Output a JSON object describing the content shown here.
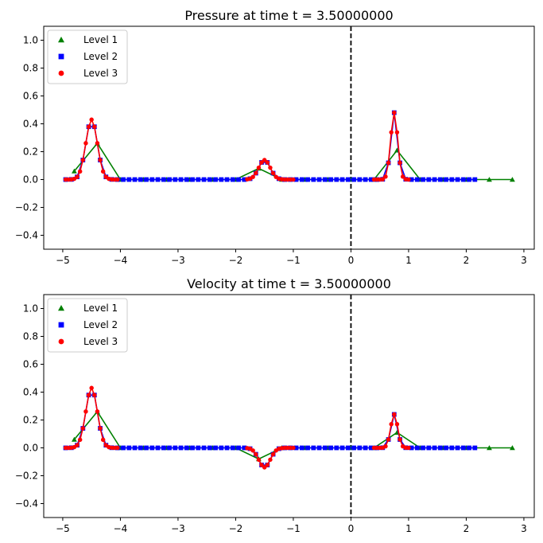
{
  "chart_data": [
    {
      "type": "line",
      "title": "Pressure at time t =     3.50000000",
      "xlabel": "",
      "ylabel": "",
      "xlim": [
        -5.33,
        3.18
      ],
      "ylim": [
        -0.5,
        1.1
      ],
      "xticks": [
        -5,
        -4,
        -3,
        -2,
        -1,
        0,
        1,
        2,
        3
      ],
      "xtick_labels": [
        "−5",
        "−4",
        "−3",
        "−2",
        "−1",
        "0",
        "1",
        "2",
        "3"
      ],
      "yticks": [
        -0.4,
        -0.2,
        0.0,
        0.2,
        0.4,
        0.6,
        0.8,
        1.0
      ],
      "ytick_labels": [
        "−0.4",
        "−0.2",
        "0.0",
        "0.2",
        "0.4",
        "0.6",
        "0.8",
        "1.0"
      ],
      "vline_x": 0,
      "legend": {
        "placement": "top-left",
        "entries": [
          "Level 1",
          "Level 2",
          "Level 3"
        ]
      },
      "series": [
        {
          "name": "Level 1",
          "color": "#008000",
          "marker": "triangle",
          "x_start": -4.8,
          "x_step": 0.4,
          "segments": [
            [
              0.06,
              0.26,
              0,
              0,
              0,
              0,
              0,
              0,
              0.08,
              0,
              0,
              0,
              0,
              0,
              0.21,
              0,
              0,
              0,
              0,
              0
            ]
          ]
        },
        {
          "name": "Level 2",
          "color": "#0000ff",
          "marker": "square",
          "x_start": -4.95,
          "x_step": 0.1,
          "segments": [
            [
              0,
              0.001,
              0.019,
              0.14,
              0.379,
              0.379,
              0.14,
              0.019,
              0.001,
              0,
              0,
              0,
              0,
              0,
              0,
              0,
              0,
              0,
              0,
              0,
              0,
              0,
              0,
              0,
              0,
              0,
              0,
              0,
              0,
              0,
              0,
              0,
              0.006,
              0.046,
              0.123,
              0.123,
              0.046,
              0.006,
              0,
              0,
              0,
              0,
              0,
              0,
              0,
              0,
              0,
              0,
              0,
              0,
              0,
              0,
              0,
              0,
              0,
              0.002,
              0.12,
              0.48,
              0.12,
              0.002,
              0,
              0,
              0,
              0,
              0,
              0,
              0,
              0,
              0,
              0,
              0,
              0
            ]
          ]
        },
        {
          "name": "Level 3",
          "color": "#ff0000",
          "marker": "circle",
          "x_step": 0.05,
          "segment_starts": [
            -4.95,
            -1.8,
            0.4
          ],
          "segments": [
            [
              0,
              0,
              0.001,
              0.005,
              0.019,
              0.058,
              0.14,
              0.261,
              0.379,
              0.43,
              0.379,
              0.261,
              0.14,
              0.058,
              0.019,
              0.005,
              0.001,
              0,
              0
            ],
            [
              0.002,
              0.006,
              0.019,
              0.046,
              0.085,
              0.123,
              0.14,
              0.123,
              0.085,
              0.046,
              0.019,
              0.006,
              0.002,
              0,
              0,
              0,
              0
            ],
            [
              0,
              0,
              0,
              0.002,
              0.021,
              0.12,
              0.339,
              0.48,
              0.339,
              0.12,
              0.021,
              0.002,
              0
            ]
          ]
        }
      ]
    },
    {
      "type": "line",
      "title": "Velocity at time t =     3.50000000",
      "xlabel": "",
      "ylabel": "",
      "xlim": [
        -5.33,
        3.18
      ],
      "ylim": [
        -0.5,
        1.1
      ],
      "xticks": [
        -5,
        -4,
        -3,
        -2,
        -1,
        0,
        1,
        2,
        3
      ],
      "xtick_labels": [
        "−5",
        "−4",
        "−3",
        "−2",
        "−1",
        "0",
        "1",
        "2",
        "3"
      ],
      "yticks": [
        -0.4,
        -0.2,
        0.0,
        0.2,
        0.4,
        0.6,
        0.8,
        1.0
      ],
      "ytick_labels": [
        "−0.4",
        "−0.2",
        "0.0",
        "0.2",
        "0.4",
        "0.6",
        "0.8",
        "1.0"
      ],
      "vline_x": 0,
      "legend": {
        "placement": "top-left",
        "entries": [
          "Level 1",
          "Level 2",
          "Level 3"
        ]
      },
      "series": [
        {
          "name": "Level 1",
          "color": "#008000",
          "marker": "triangle",
          "x_start": -4.8,
          "x_step": 0.4,
          "segments": [
            [
              0.06,
              0.26,
              0,
              0,
              0,
              0,
              0,
              0,
              -0.08,
              0,
              0,
              0,
              0,
              0,
              0.11,
              0,
              0,
              0,
              0,
              0
            ]
          ]
        },
        {
          "name": "Level 2",
          "color": "#0000ff",
          "marker": "square",
          "x_start": -4.95,
          "x_step": 0.1,
          "segments": [
            [
              0,
              0.001,
              0.019,
              0.14,
              0.379,
              0.379,
              0.14,
              0.019,
              0.001,
              0,
              0,
              0,
              0,
              0,
              0,
              0,
              0,
              0,
              0,
              0,
              0,
              0,
              0,
              0,
              0,
              0,
              0,
              0,
              0,
              0,
              0,
              0,
              -0.006,
              -0.046,
              -0.123,
              -0.123,
              -0.046,
              -0.006,
              0,
              0,
              0,
              0,
              0,
              0,
              0,
              0,
              0,
              0,
              0,
              0,
              0,
              0,
              0,
              0,
              0,
              0.001,
              0.06,
              0.24,
              0.06,
              0.001,
              0,
              0,
              0,
              0,
              0,
              0,
              0,
              0,
              0,
              0,
              0,
              0
            ]
          ]
        },
        {
          "name": "Level 3",
          "color": "#ff0000",
          "marker": "circle",
          "x_step": 0.05,
          "segment_starts": [
            -4.95,
            -1.8,
            0.4
          ],
          "segments": [
            [
              0,
              0,
              0.001,
              0.005,
              0.019,
              0.058,
              0.14,
              0.261,
              0.379,
              0.43,
              0.379,
              0.261,
              0.14,
              0.058,
              0.019,
              0.005,
              0.001,
              0,
              0
            ],
            [
              -0.002,
              -0.006,
              -0.019,
              -0.046,
              -0.085,
              -0.123,
              -0.14,
              -0.123,
              -0.085,
              -0.046,
              -0.019,
              -0.006,
              -0.002,
              0,
              0,
              0,
              0
            ],
            [
              0,
              0,
              0,
              0.001,
              0.011,
              0.06,
              0.17,
              0.24,
              0.17,
              0.06,
              0.011,
              0.001,
              0
            ]
          ]
        }
      ]
    }
  ]
}
